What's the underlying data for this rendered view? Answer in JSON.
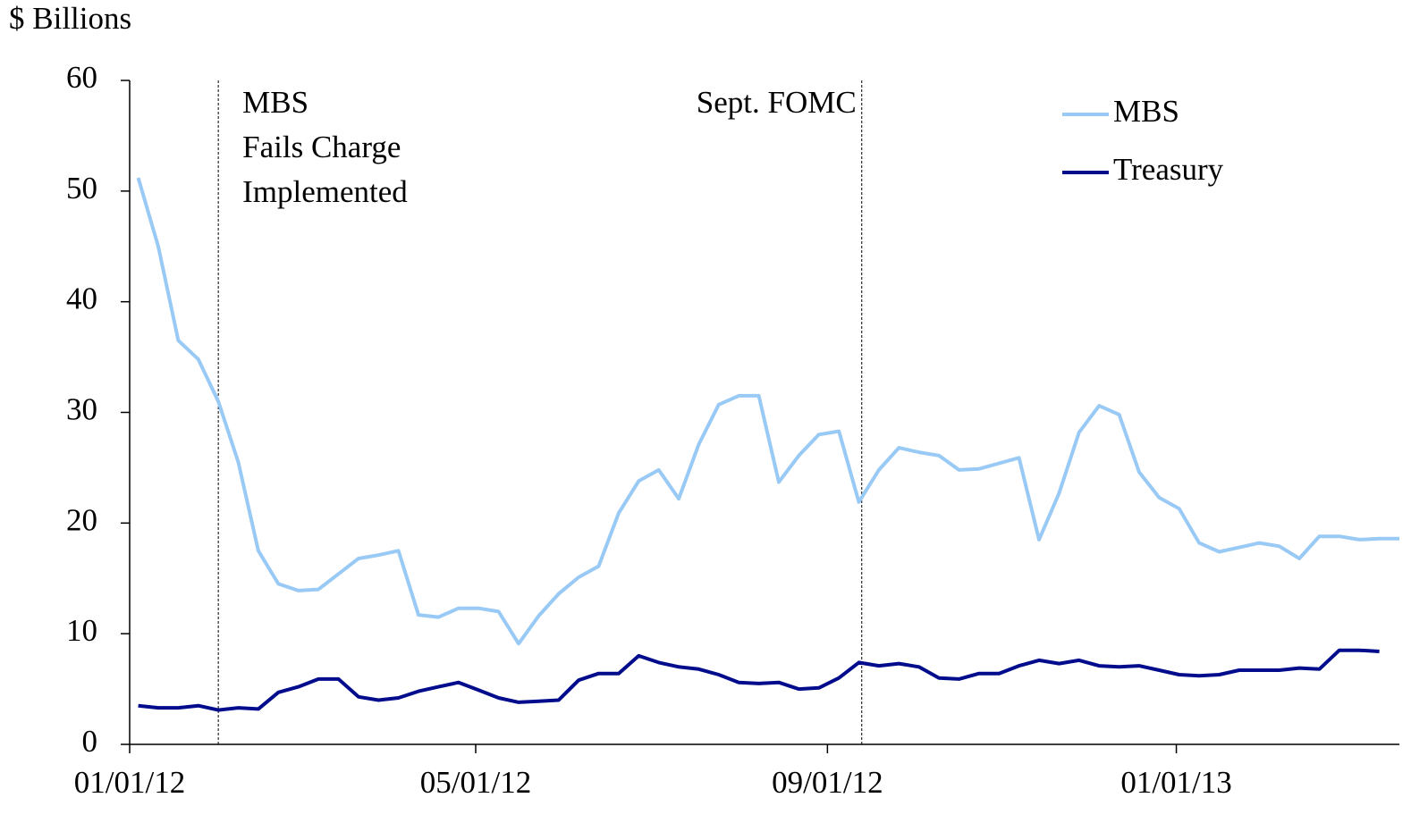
{
  "chart_data": {
    "type": "line",
    "y_axis_label": "$ Billions",
    "x": [
      "2012-01-04",
      "2012-01-11",
      "2012-01-18",
      "2012-01-25",
      "2012-02-01",
      "2012-02-08",
      "2012-02-15",
      "2012-02-22",
      "2012-02-29",
      "2012-03-07",
      "2012-03-14",
      "2012-03-21",
      "2012-03-28",
      "2012-04-04",
      "2012-04-11",
      "2012-04-18",
      "2012-04-25",
      "2012-05-02",
      "2012-05-09",
      "2012-05-16",
      "2012-05-23",
      "2012-05-30",
      "2012-06-06",
      "2012-06-13",
      "2012-06-20",
      "2012-06-27",
      "2012-07-04",
      "2012-07-11",
      "2012-07-18",
      "2012-07-25",
      "2012-08-01",
      "2012-08-08",
      "2012-08-15",
      "2012-08-22",
      "2012-08-29",
      "2012-09-05",
      "2012-09-12",
      "2012-09-19",
      "2012-09-26",
      "2012-10-03",
      "2012-10-10",
      "2012-10-17",
      "2012-10-24",
      "2012-10-31",
      "2012-11-07",
      "2012-11-14",
      "2012-11-21",
      "2012-11-28",
      "2012-12-05",
      "2012-12-12",
      "2012-12-19",
      "2012-12-26",
      "2013-01-02",
      "2013-01-09",
      "2013-01-16",
      "2013-01-23",
      "2013-01-30",
      "2013-02-06",
      "2013-02-13",
      "2013-02-20",
      "2013-02-27",
      "2013-03-06",
      "2013-03-13",
      "2013-03-20"
    ],
    "series": [
      {
        "name": "MBS",
        "color": "#99c9f5",
        "values": [
          51.2,
          45,
          36.5,
          34.8,
          31,
          25.5,
          17.5,
          14.5,
          13.9,
          14,
          15.4,
          16.8,
          17.1,
          17.5,
          11.7,
          11.5,
          12.3,
          12.3,
          12,
          9.1,
          11.6,
          13.6,
          15.1,
          16.1,
          20.9,
          23.8,
          24.8,
          22.2,
          27.1,
          30.7,
          31.5,
          31.5,
          23.7,
          26.1,
          28,
          28.3,
          21.9,
          24.8,
          26.8,
          26.4,
          26.1,
          24.8,
          24.9,
          25.4,
          25.9,
          18.5,
          22.7,
          28.2,
          30.6,
          29.8,
          24.6,
          22.3,
          21.3,
          18.2,
          17.4,
          17.8,
          18.2,
          17.9,
          16.8,
          18.8,
          18.8,
          18.5,
          18.6,
          18.6
        ]
      },
      {
        "name": "Treasury",
        "color": "#000c8c",
        "values": [
          3.5,
          3.3,
          3.3,
          3.5,
          3.1,
          3.3,
          3.2,
          4.7,
          5.2,
          5.9,
          5.9,
          4.3,
          4.0,
          4.2,
          4.8,
          5.2,
          5.6,
          4.9,
          4.2,
          3.8,
          3.9,
          4.0,
          5.8,
          6.4,
          6.4,
          8.0,
          7.4,
          7.0,
          6.8,
          6.3,
          5.6,
          5.5,
          5.6,
          5.0,
          5.1,
          6.0,
          7.4,
          7.1,
          7.3,
          7.0,
          6.0,
          5.9,
          6.4,
          6.4,
          7.1,
          7.6,
          7.3,
          7.6,
          7.1,
          7.0,
          7.1,
          6.7,
          6.3,
          6.2,
          6.3,
          6.7,
          6.7,
          6.7,
          6.9,
          6.8,
          8.5,
          8.5,
          8.4,
          null
        ]
      }
    ],
    "xlim": [
      "2012-01-01",
      "2013-03-20"
    ],
    "xticks": [
      {
        "value": "2012-01-01",
        "label": "01/01/12"
      },
      {
        "value": "2012-05-01",
        "label": "05/01/12"
      },
      {
        "value": "2012-09-01",
        "label": "09/01/12"
      },
      {
        "value": "2013-01-01",
        "label": "01/01/13"
      }
    ],
    "ylim": [
      0,
      60
    ],
    "yticks": [
      0,
      10,
      20,
      30,
      40,
      50,
      60
    ],
    "legend": "upper right",
    "annotations": [
      {
        "x": "2012-02-01",
        "text": [
          "MBS",
          "Fails Charge",
          "Implemented"
        ]
      },
      {
        "x": "2012-09-13",
        "text": [
          "Sept. FOMC"
        ]
      }
    ]
  }
}
